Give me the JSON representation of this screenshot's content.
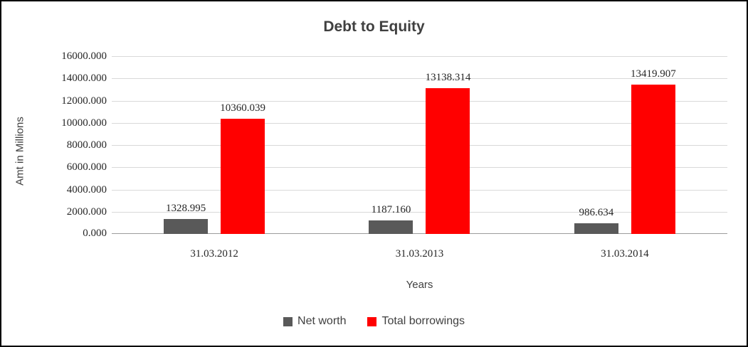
{
  "chart_data": {
    "type": "bar",
    "title": "Debt to Equity",
    "xlabel": "Years",
    "ylabel": "Amt in Millions",
    "categories": [
      "31.03.2012",
      "31.03.2013",
      "31.03.2014"
    ],
    "series": [
      {
        "name": "Net worth",
        "color": "#595959",
        "values": [
          1328.995,
          1187.16,
          986.634
        ],
        "labels": [
          "1328.995",
          "1187.160",
          "986.634"
        ]
      },
      {
        "name": "Total borrowings",
        "color": "#ff0000",
        "values": [
          10360.039,
          13138.314,
          13419.907
        ],
        "labels": [
          "10360.039",
          "13138.314",
          "13419.907"
        ]
      }
    ],
    "ylim": [
      0,
      16000
    ],
    "ytick_step": 2000,
    "yticks": [
      "0.000",
      "2000.000",
      "4000.000",
      "6000.000",
      "8000.000",
      "10000.000",
      "12000.000",
      "14000.000",
      "16000.000"
    ],
    "grid": true,
    "legend_position": "bottom"
  },
  "colors": {
    "grid": "#d9d9d9",
    "axis": "#9c9c9c",
    "text": "#404040",
    "label_text": "#262626",
    "frame_border": "#000000"
  }
}
